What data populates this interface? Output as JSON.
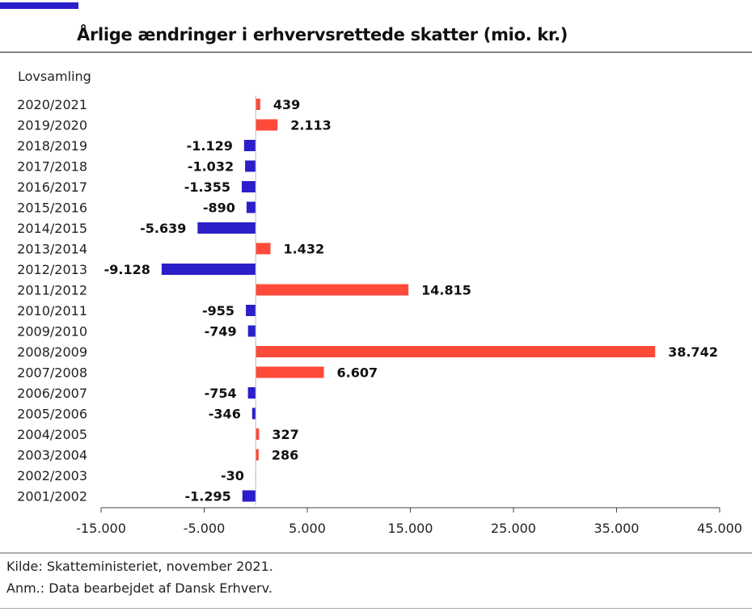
{
  "header": {
    "title": "Årlige ændringer i erhvervsrettede skatter (mio. kr.)"
  },
  "footer": {
    "source": "Kilde: Skatteministeriet, november 2021.",
    "note": "Anm.: Data bearbejdet af Dansk Erhverv."
  },
  "colors": {
    "accent": "#2b1fc9",
    "positive": "#ff4a3a",
    "negative": "#2b1fc9"
  },
  "chart_data": {
    "type": "bar",
    "orientation": "horizontal",
    "title": "Årlige ændringer i erhvervsrettede skatter (mio. kr.)",
    "ylabel": "Lovsamling",
    "categories": [
      "2020/2021",
      "2019/2020",
      "2018/2019",
      "2017/2018",
      "2016/2017",
      "2015/2016",
      "2014/2015",
      "2013/2014",
      "2012/2013",
      "2011/2012",
      "2010/2011",
      "2009/2010",
      "2008/2009",
      "2007/2008",
      "2006/2007",
      "2005/2006",
      "2004/2005",
      "2003/2004",
      "2002/2003",
      "2001/2002"
    ],
    "values": [
      439,
      2113,
      -1129,
      -1032,
      -1355,
      -890,
      -5639,
      1432,
      -9128,
      14815,
      -955,
      -749,
      38742,
      6607,
      -754,
      -346,
      327,
      286,
      -30,
      -1295
    ],
    "value_labels": [
      "439",
      "2.113",
      "-1.129",
      "-1.032",
      "-1.355",
      "-890",
      "-5.639",
      "1.432",
      "-9.128",
      "14.815",
      "-955",
      "-749",
      "38.742",
      "6.607",
      "-754",
      "-346",
      "327",
      "286",
      "-30",
      "-1.295"
    ],
    "xlim": [
      -15000,
      45000
    ],
    "xticks": [
      -15000,
      -5000,
      5000,
      15000,
      25000,
      35000,
      45000
    ],
    "xtick_labels": [
      "-15.000",
      "-5.000",
      "5.000",
      "15.000",
      "25.000",
      "35.000",
      "45.000"
    ],
    "grid": false,
    "legend": "none"
  }
}
